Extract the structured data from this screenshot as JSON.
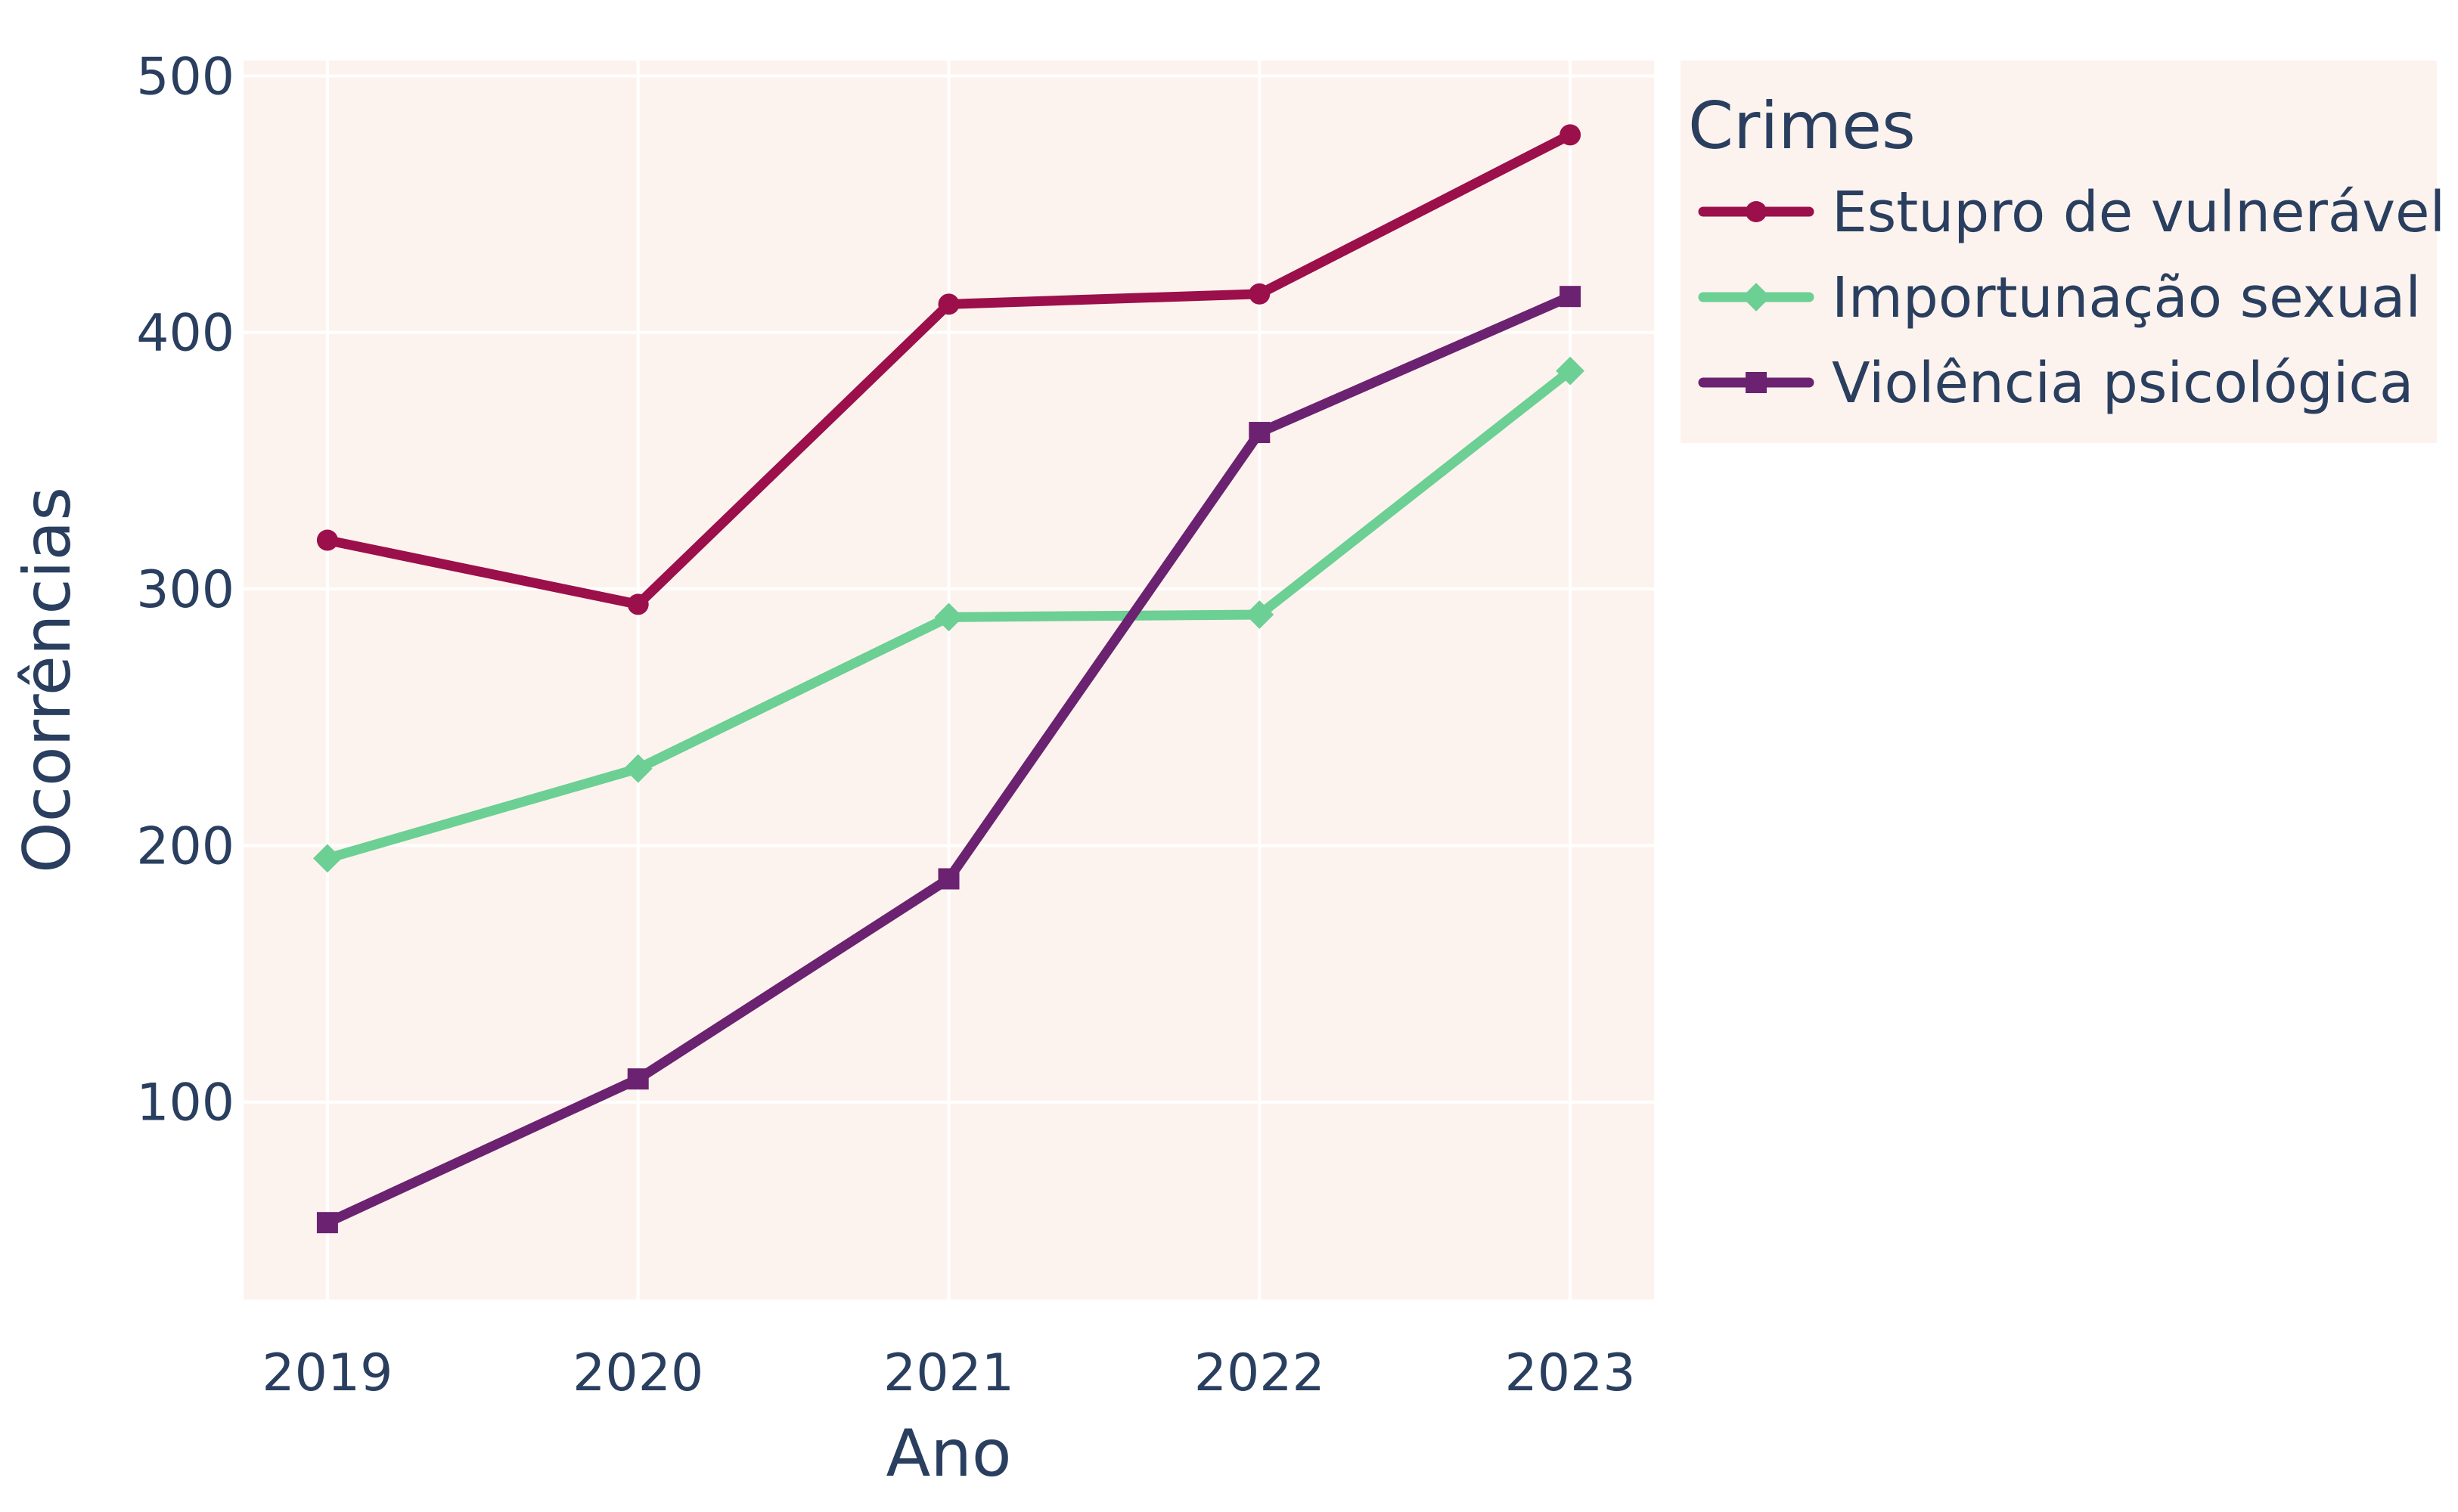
{
  "chart_data": {
    "type": "line",
    "title": "",
    "xlabel": "Ano",
    "ylabel": "Ocorrências",
    "x": [
      2019,
      2020,
      2021,
      2022,
      2023
    ],
    "x_tick_labels": [
      "2019",
      "2020",
      "2021",
      "2022",
      "2023"
    ],
    "ylim": [
      23,
      506
    ],
    "y_ticks": [
      100,
      200,
      300,
      400,
      500
    ],
    "y_tick_labels": [
      "100",
      "200",
      "300",
      "400",
      "500"
    ],
    "grid": true,
    "plot_background": "#fdf3ee",
    "legend": {
      "title": "Crimes",
      "placement": "right",
      "background": "#fdf3ee"
    },
    "series": [
      {
        "name": "Estupro de vulnerável",
        "marker": "circle",
        "color": "#9b0f4a",
        "values": [
          319,
          294,
          411,
          415,
          477
        ]
      },
      {
        "name": "Importunação sexual",
        "marker": "diamond",
        "color": "#6ccf93",
        "values": [
          195,
          230,
          289,
          290,
          385
        ]
      },
      {
        "name": "Violência psicológica",
        "marker": "square",
        "color": "#6b2270",
        "values": [
          53,
          109,
          187,
          361,
          414
        ]
      }
    ]
  }
}
